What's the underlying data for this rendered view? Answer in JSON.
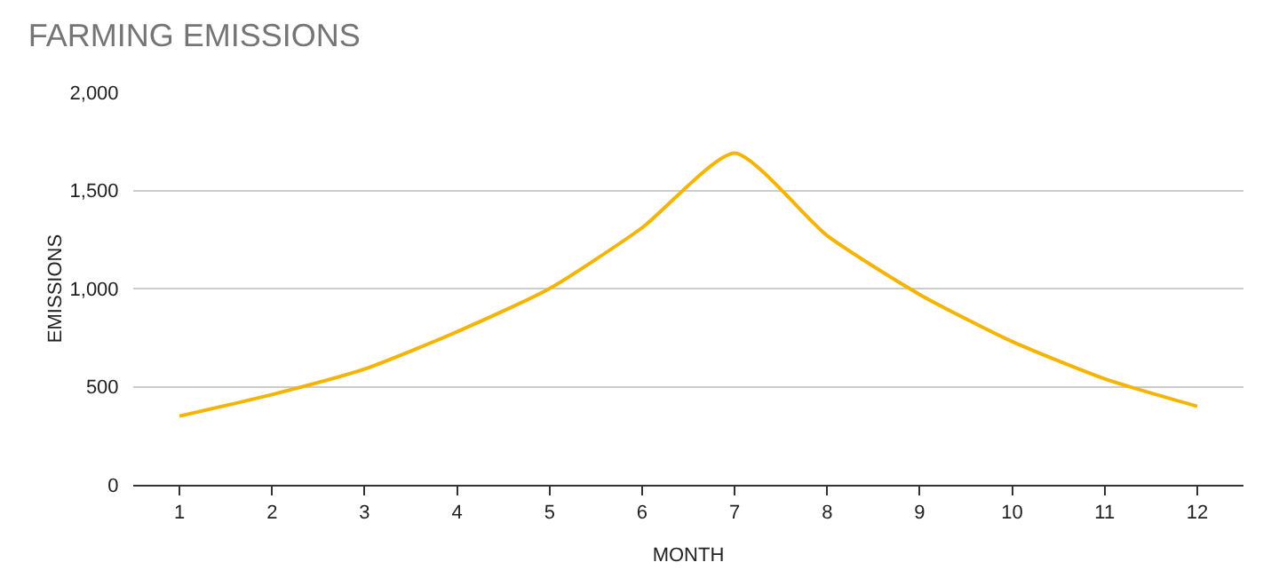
{
  "chart_data": {
    "type": "line",
    "title": "FARMING EMISSIONS",
    "xlabel": "MONTH",
    "ylabel": "EMISSIONS",
    "x": [
      1,
      2,
      3,
      4,
      5,
      6,
      7,
      8,
      9,
      10,
      11,
      12
    ],
    "series": [
      {
        "color": "#f4b400",
        "values": [
          350,
          460,
          590,
          780,
          1000,
          1310,
          1690,
          1270,
          970,
          730,
          540,
          400
        ]
      }
    ],
    "xlim": [
      0.5,
      12.5
    ],
    "xticks": [
      1,
      2,
      3,
      4,
      5,
      6,
      7,
      8,
      9,
      10,
      11,
      12
    ],
    "ylim": [
      0,
      2000
    ],
    "yticks": [
      {
        "value": 0,
        "label": "0"
      },
      {
        "value": 500,
        "label": "500"
      },
      {
        "value": 1000,
        "label": "1,000"
      },
      {
        "value": 1500,
        "label": "1,500"
      },
      {
        "value": 2000,
        "label": "2,000"
      }
    ],
    "grid": "y",
    "marker": "none",
    "line_style": "solid"
  }
}
